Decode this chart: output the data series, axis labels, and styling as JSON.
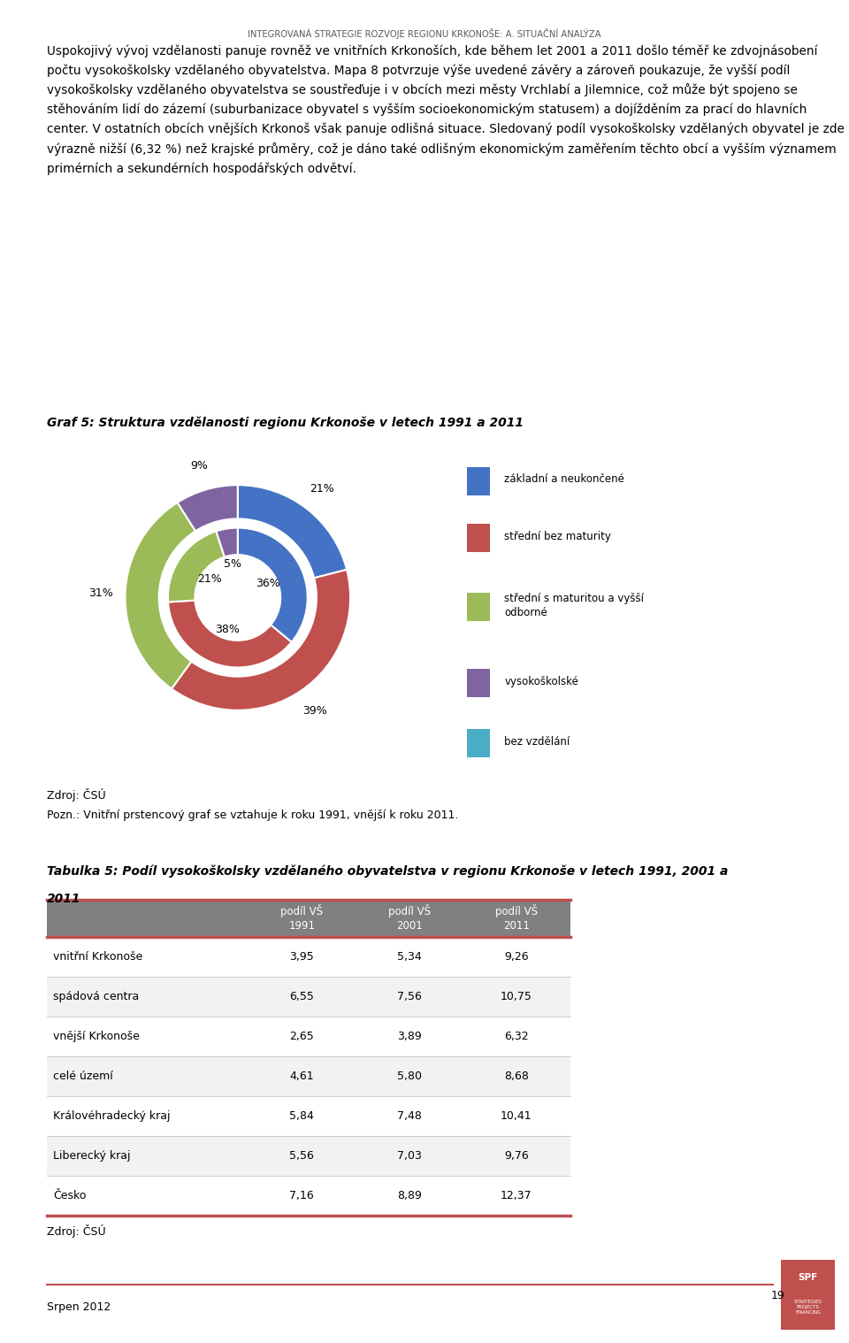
{
  "header": "INTEGROVANÁ STRATEGIE ROZVOJE REGIONU KRKONOŠE: A. SITUAČNÍ ANALÝZA",
  "body_text": "Uspokojivý vývoj vzdělanosti panuje rovněž ve vnitřních Krkonoších, kde během let 2001 a 2011 došlo téměř ke zdvojnásobení počtu vysokoškolsky vzdělaného obyvatelstva. Mapa 8 potvrzuje výše uvedené závěry a zároveň poukazuje, že vyšší podíl vysokoškolsky vzdělaného obyvatelstva se soustřeďuje i v obcích mezi městy Vrchlabí a Jilemnice, což může být spojeno se stěhováním lidí do zázemí (suburbanizace obyvatel s vyšším socioekonomickým statusem) a dojížděním za prací do hlavních center. V ostatních obcích vnějších Krkonoš však panuje odlišná situace. Sledovaný podíl vysokoškolsky vzdělaných obyvatel je zde výrazně nižší (6,32 %) než krajské průměry, což je dáno také odlišným ekonomickým zaměřením těchto obcí a vyšším významem primérních a sekundérních hospodářských odvětví.",
  "chart_title": "Graf 5: Struktura vzdělanosti regionu Krkonoše v letech 1991 a 2011",
  "inner_values": [
    36,
    38,
    21,
    5,
    0
  ],
  "outer_values": [
    21,
    39,
    31,
    9,
    0
  ],
  "legend_labels": [
    "základní a neukončené",
    "střední bez maturity",
    "střední s maturitou a vyšší\nodborné",
    "vysokoškolské",
    "bez vzdělání"
  ],
  "colors": [
    "#4472C4",
    "#C0504D",
    "#9BBB59",
    "#8064A2",
    "#4BACC6"
  ],
  "source_text": "Zdroj: ČSÚ",
  "note_text": "Pozn.: Vnitřní prstencový graf se vztahuje k roku 1991, vnější k roku 2011.",
  "table_title_line1": "Tabulka 5: Podíl vysokoškolsky vzdělaného obyvatelstva v regionu Krkonoše v letech 1991, 2001 a",
  "table_title_line2": "2011",
  "table_headers": [
    "",
    "podíl VŠ\n1991",
    "podíl VŠ\n2001",
    "podíl VŠ\n2011"
  ],
  "table_rows": [
    [
      "vnitřní Krkonoše",
      "3,95",
      "5,34",
      "9,26"
    ],
    [
      "spádová centra",
      "6,55",
      "7,56",
      "10,75"
    ],
    [
      "vnější Krkonoše",
      "2,65",
      "3,89",
      "6,32"
    ],
    [
      "celé území",
      "4,61",
      "5,80",
      "8,68"
    ],
    [
      "Královéhradecký kraj",
      "5,84",
      "7,48",
      "10,41"
    ],
    [
      "Liberecký kraj",
      "5,56",
      "7,03",
      "9,76"
    ],
    [
      "Česko",
      "7,16",
      "8,89",
      "12,37"
    ]
  ],
  "table_source": "Zdroj: ČSÚ",
  "footer_left": "Srpen 2012",
  "footer_page": "19",
  "header_color": "#595959",
  "table_header_bg": "#808080",
  "table_row_bg1": "#FFFFFF",
  "table_row_bg2": "#F2F2F2",
  "table_border_color": "#C0504D",
  "spf_bg": "#C0504D"
}
